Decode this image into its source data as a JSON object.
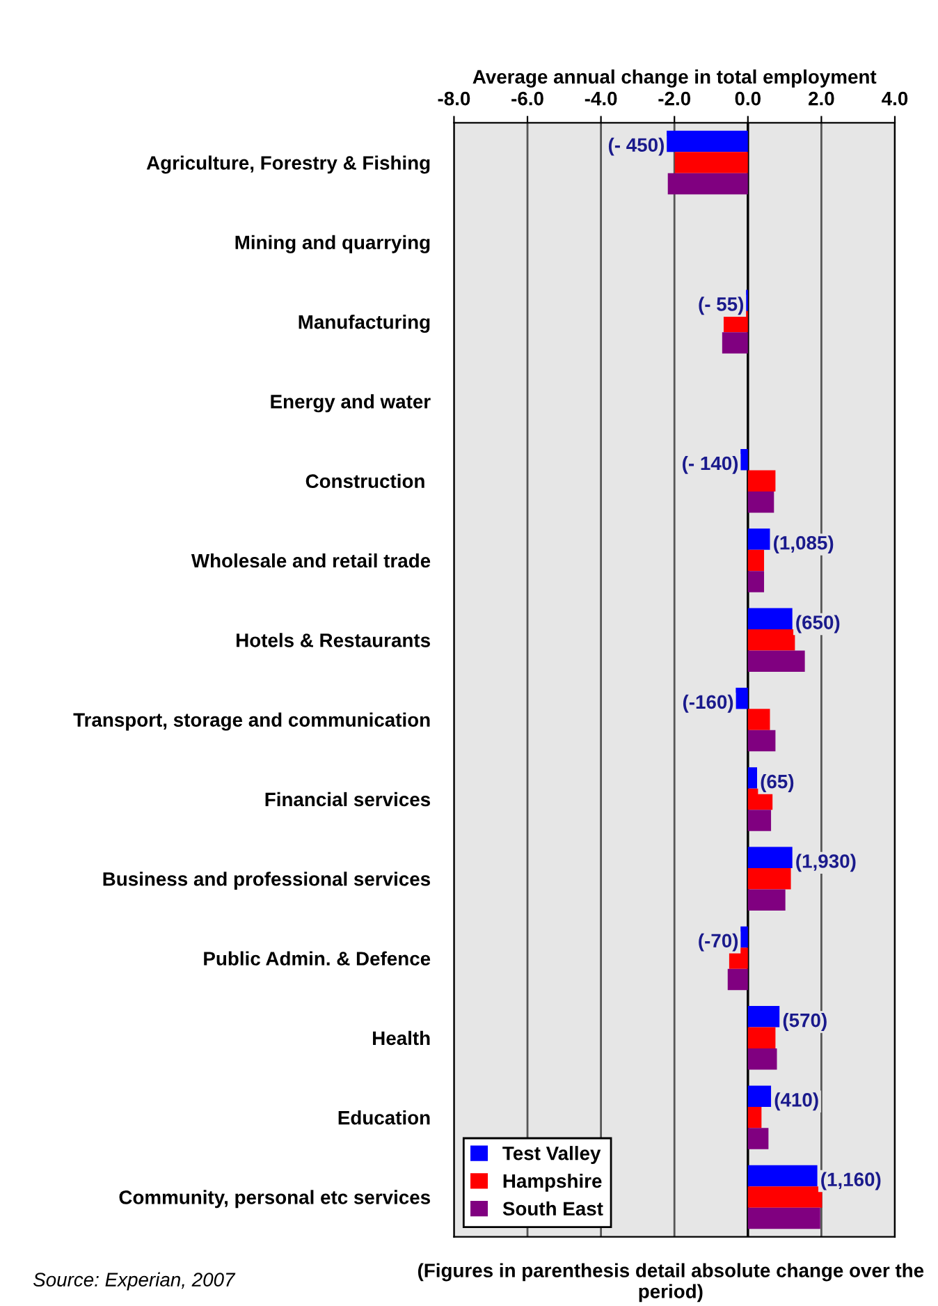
{
  "chart_data": {
    "type": "bar",
    "orientation": "horizontal",
    "xlabel": "Average annual change in total employment",
    "categories": [
      "Agriculture, Forestry & Fishing",
      "Mining and quarrying",
      "Manufacturing",
      "Energy and water",
      "Construction ",
      "Wholesale and retail trade",
      "Hotels & Restaurants",
      "Transport, storage and communication",
      "Financial services",
      "Business and professional services",
      "Public Admin. & Defence",
      "Health",
      "Education",
      "Community, personal etc services"
    ],
    "series": [
      {
        "name": "Test Valley",
        "color": "#0000ff",
        "values": [
          -2.21,
          null,
          -0.05,
          null,
          -0.2,
          0.6,
          1.21,
          -0.33,
          0.25,
          1.21,
          -0.2,
          0.86,
          0.63,
          1.89
        ]
      },
      {
        "name": "Hampshire",
        "color": "#ff0000",
        "values": [
          -1.99,
          null,
          -0.66,
          null,
          0.75,
          0.44,
          1.28,
          0.6,
          0.67,
          1.17,
          -0.51,
          0.75,
          0.37,
          2.02
        ]
      },
      {
        "name": "South East",
        "color": "#800080",
        "values": [
          -2.18,
          null,
          -0.7,
          null,
          0.71,
          0.44,
          1.55,
          0.75,
          0.63,
          1.02,
          -0.55,
          0.79,
          0.56,
          1.97
        ]
      }
    ],
    "xlim": [
      -8,
      4
    ],
    "xticks": [
      {
        "value": -8,
        "label": "-8.0"
      },
      {
        "value": -6,
        "label": "-6.0"
      },
      {
        "value": -4,
        "label": "-4.0"
      },
      {
        "value": -2,
        "label": "-2.0"
      },
      {
        "value": 0,
        "label": "0.0"
      },
      {
        "value": 2,
        "label": "2.0"
      },
      {
        "value": 4,
        "label": "4.0"
      }
    ],
    "grid": "x",
    "legend": "bottom left",
    "annotations": [
      "(- 450)",
      "(- 55)",
      "(- 140)",
      "(1,085)",
      "(650)",
      "(-160)",
      "(65)",
      "(1,930)",
      "(-70)",
      "(570)",
      "(410)",
      "(1,160)",
      "(Figures in parenthesis detail absolute change over the period)",
      "Source: Experian, 2007"
    ]
  }
}
